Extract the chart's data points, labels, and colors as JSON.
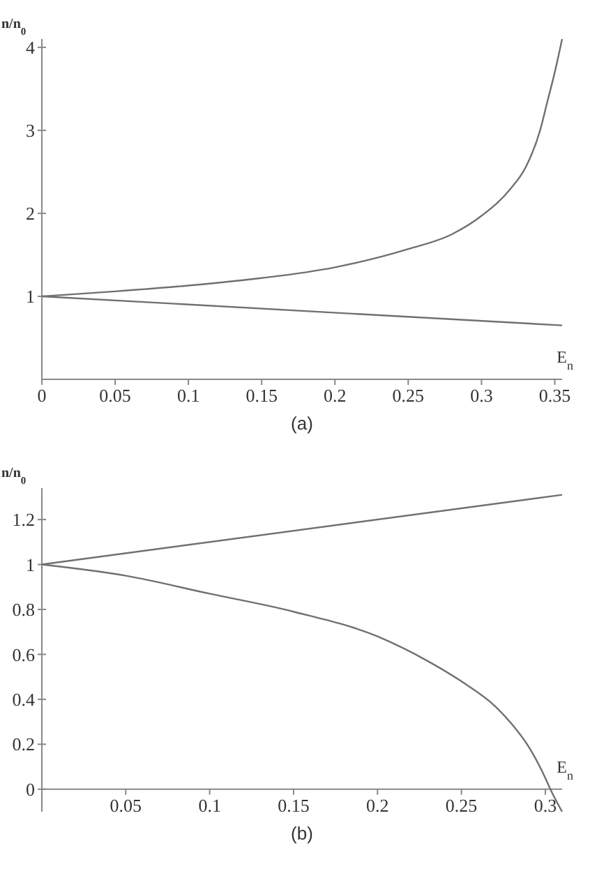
{
  "chart_data": [
    {
      "type": "line",
      "title": "(a)",
      "xlabel": "E$_{n}$",
      "ylabel": "n/n$_{0}$",
      "xlim": [
        0,
        0.355
      ],
      "ylim": [
        0,
        4.1
      ],
      "xticks": [
        0,
        0.05,
        0.1,
        0.15,
        0.2,
        0.25,
        0.3,
        0.35
      ],
      "yticks": [
        1,
        2,
        3,
        4
      ],
      "grid": false,
      "series": [
        {
          "color": "#707070",
          "x": [
            0,
            0.05,
            0.1,
            0.15,
            0.2,
            0.25,
            0.28,
            0.3,
            0.32,
            0.33,
            0.34,
            0.345,
            0.35,
            0.355
          ],
          "values": [
            1,
            1.06,
            1.13,
            1.22,
            1.35,
            1.57,
            1.75,
            1.97,
            2.3,
            2.55,
            3.0,
            3.35,
            3.7,
            4.1
          ]
        },
        {
          "color": "#707070",
          "x": [
            0,
            0.355
          ],
          "values": [
            1,
            0.65
          ]
        }
      ]
    },
    {
      "type": "line",
      "title": "(b)",
      "xlabel": "E$_{n}$",
      "ylabel": "n/n$_{0}$",
      "xlim": [
        0,
        0.31
      ],
      "ylim": [
        -0.1,
        1.34
      ],
      "xticks": [
        0.05,
        0.1,
        0.15,
        0.2,
        0.25,
        0.3
      ],
      "yticks": [
        0,
        0.2,
        0.4,
        0.6,
        0.8,
        1,
        1.2
      ],
      "grid": false,
      "series": [
        {
          "color": "#707070",
          "x": [
            0,
            0.31
          ],
          "values": [
            1,
            1.31
          ]
        },
        {
          "color": "#707070",
          "x": [
            0,
            0.05,
            0.1,
            0.15,
            0.2,
            0.23,
            0.25,
            0.27,
            0.28,
            0.29,
            0.3,
            0.303,
            0.31
          ],
          "values": [
            1,
            0.95,
            0.87,
            0.79,
            0.68,
            0.57,
            0.48,
            0.37,
            0.29,
            0.19,
            0.05,
            0,
            -0.1
          ]
        }
      ]
    }
  ]
}
